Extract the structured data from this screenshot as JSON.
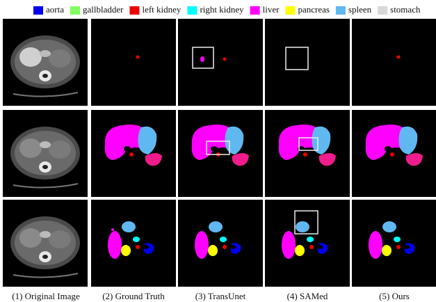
{
  "legend": [
    {
      "label": "aorta",
      "color": "#0000ee"
    },
    {
      "label": "gallbladder",
      "color": "#80ff60"
    },
    {
      "label": "left kidney",
      "color": "#ee0000"
    },
    {
      "label": "right kidney",
      "color": "#00ffff"
    },
    {
      "label": "liver",
      "color": "#ff00ff"
    },
    {
      "label": "pancreas",
      "color": "#ffff00"
    },
    {
      "label": "spleen",
      "color": "#60b8f0"
    },
    {
      "label": "stomach",
      "color": "#d8d8d8"
    }
  ],
  "captions": [
    "(1) Original Image",
    "(2) Ground Truth",
    "(3) TransUnet",
    "(4) SAMed",
    "(5) Ours"
  ]
}
